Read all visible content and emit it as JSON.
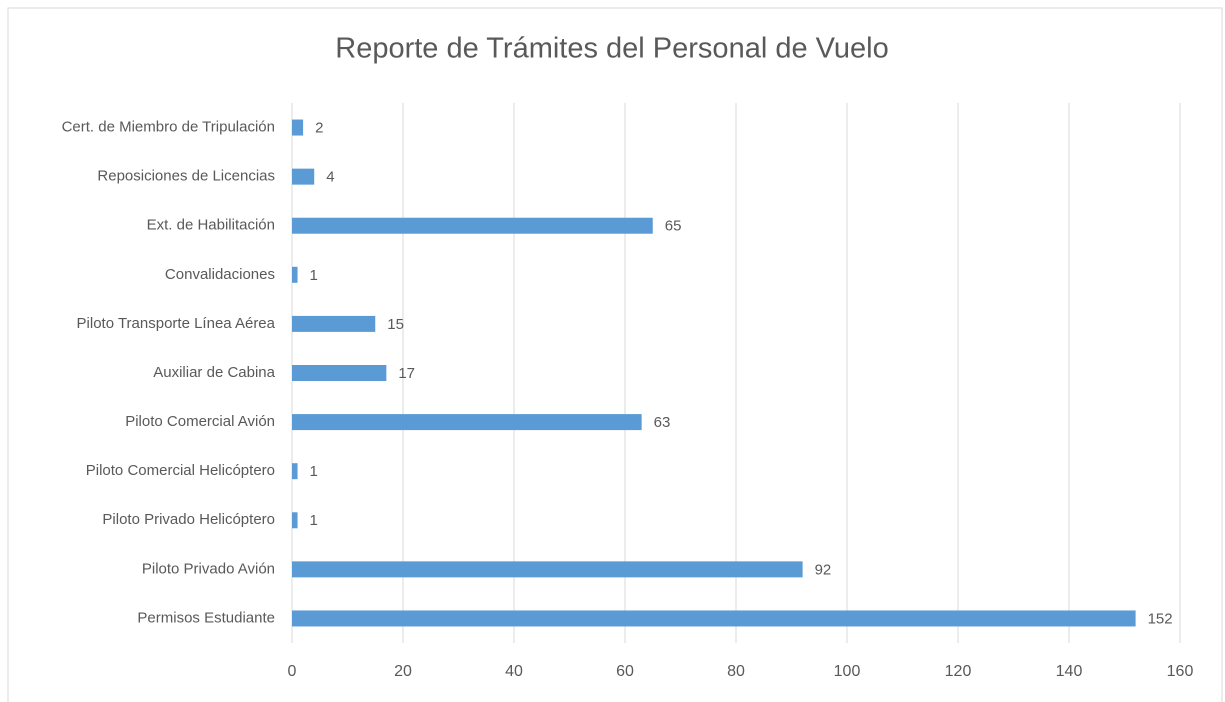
{
  "chart_data": {
    "type": "bar",
    "orientation": "horizontal",
    "title": "Reporte de Trámites del Personal de Vuelo",
    "categories": [
      "Cert. de Miembro de Tripulación",
      "Reposiciones de Licencias",
      "Ext. de Habilitación",
      "Convalidaciones",
      "Piloto Transporte Línea Aérea",
      "Auxiliar de Cabina",
      "Piloto Comercial Avión",
      "Piloto Comercial Helicóptero",
      "Piloto Privado Helicóptero",
      "Piloto Privado Avión",
      "Permisos Estudiante"
    ],
    "values": [
      2,
      4,
      65,
      1,
      15,
      17,
      63,
      1,
      1,
      92,
      152
    ],
    "color": "#5b9bd5",
    "xlim": [
      0,
      160
    ],
    "xticks": [
      0,
      20,
      40,
      60,
      80,
      100,
      120,
      140,
      160
    ],
    "grid": true
  }
}
